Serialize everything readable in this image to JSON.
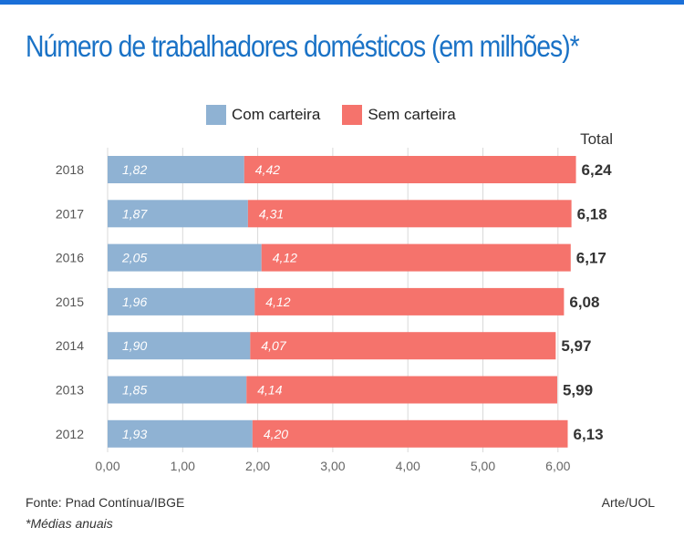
{
  "title": "Número de trabalhadores domésticos (em milhões)*",
  "footer": {
    "source": "Fonte: Pnad Contínua/IBGE",
    "note": "*Médias anuais",
    "credit": "Arte/UOL"
  },
  "colors": {
    "com": "#8fb2d3",
    "sem": "#f5736c",
    "grid": "#d9d9d9",
    "title": "#1a72c6"
  },
  "chart_data": {
    "type": "bar",
    "orientation": "horizontal",
    "stacked": true,
    "title": "Número de trabalhadores domésticos (em milhões)*",
    "categories": [
      "2018",
      "2017",
      "2016",
      "2015",
      "2014",
      "2013",
      "2012"
    ],
    "series": [
      {
        "name": "Com carteira",
        "values": [
          1.82,
          1.87,
          2.05,
          1.96,
          1.9,
          1.85,
          1.93
        ],
        "labels": [
          "1,82",
          "1,87",
          "2,05",
          "1,96",
          "1,90",
          "1,85",
          "1,93"
        ]
      },
      {
        "name": "Sem carteira",
        "values": [
          4.42,
          4.31,
          4.12,
          4.12,
          4.07,
          4.14,
          4.2
        ],
        "labels": [
          "4,42",
          "4,31",
          "4,12",
          "4,12",
          "4,07",
          "4,14",
          "4,20"
        ]
      }
    ],
    "totals": [
      6.24,
      6.18,
      6.17,
      6.08,
      5.97,
      5.99,
      6.13
    ],
    "total_labels": [
      "6,24",
      "6,18",
      "6,17",
      "6,08",
      "5,97",
      "5,99",
      "6,13"
    ],
    "total_header": "Total",
    "xlim": [
      0,
      6.2
    ],
    "xticks": [
      0,
      1,
      2,
      3,
      4,
      5,
      6
    ],
    "xtick_labels": [
      "0,00",
      "1,00",
      "2,00",
      "3,00",
      "4,00",
      "5,00",
      "6,00"
    ],
    "grid": "vertical",
    "legend_position": "top"
  }
}
